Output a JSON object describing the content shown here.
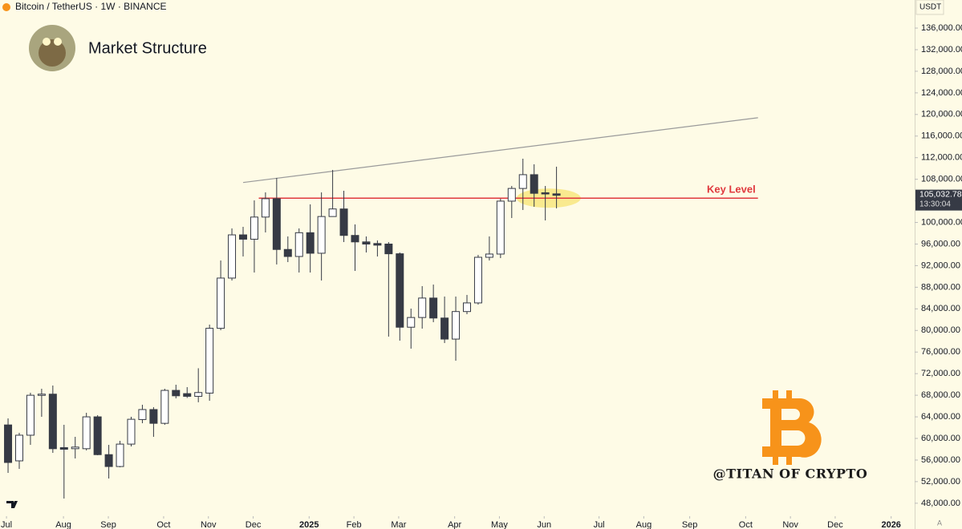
{
  "chart_data": {
    "type": "candlestick",
    "symbol": "Bitcoin / TetherUS · 1W · BINANCE",
    "title": "Market Structure",
    "currency": "USDT",
    "watermark": "@TITAN OF CRYPTO",
    "scale_mode": "A",
    "up_color": "#ffffff",
    "down_color": "#363a45",
    "candles": {
      "open": [
        62500,
        55850,
        60600,
        68000,
        68200,
        58300,
        58100,
        58100,
        64000,
        57000,
        54800,
        58950,
        63500,
        65350,
        62800,
        68900,
        68300,
        67800,
        68400,
        80400,
        89700,
        97700,
        96900,
        101000,
        104400,
        95000,
        93700,
        98100,
        94300,
        101100,
        102500,
        97600,
        96400,
        96100,
        96000,
        94200,
        80600,
        82400,
        86000,
        82300,
        78400,
        83500,
        85100,
        93550,
        94150,
        103950,
        106300,
        108850,
        105500,
        105300
      ],
      "high": [
        63713,
        61040,
        68460,
        69200,
        69800,
        62530,
        60300,
        64750,
        64310,
        58810,
        59560,
        64010,
        66240,
        65790,
        69200,
        69950,
        69500,
        73000,
        81080,
        92960,
        98900,
        99190,
        104090,
        105570,
        108250,
        97410,
        98900,
        103350,
        105570,
        109730,
        105870,
        99640,
        97410,
        96670,
        96370,
        94440,
        84050,
        88210,
        88500,
        86280,
        86280,
        86580,
        93990,
        97410,
        104390,
        106760,
        111810,
        110770,
        106760,
        110330
      ],
      "low": [
        53620,
        54360,
        58810,
        64010,
        57330,
        48870,
        56290,
        57780,
        56890,
        52580,
        54660,
        58520,
        62820,
        60300,
        62530,
        67420,
        67500,
        66700,
        66980,
        80040,
        89250,
        93700,
        90730,
        98150,
        92220,
        92660,
        90730,
        90730,
        89250,
        101120,
        96370,
        91030,
        94440,
        93700,
        78860,
        78110,
        76630,
        80340,
        81530,
        77670,
        74400,
        83010,
        84790,
        92960,
        93400,
        100820,
        102310,
        102900,
        100380,
        102610
      ],
      "close": [
        55550,
        60600,
        68000,
        68200,
        58100,
        58000,
        58400,
        64000,
        57000,
        54800,
        58950,
        63550,
        65350,
        62800,
        68900,
        67900,
        67800,
        68500,
        80400,
        89700,
        97700,
        96900,
        101000,
        104400,
        95000,
        93700,
        98100,
        94300,
        101100,
        102500,
        97600,
        96400,
        96000,
        95800,
        94200,
        80600,
        82400,
        86000,
        82300,
        78400,
        83500,
        85100,
        93550,
        94150,
        103950,
        106300,
        108850,
        105400,
        105300,
        105032.78
      ]
    },
    "trendline": {
      "x": [
        21,
        67
      ],
      "values": [
        107400,
        119400
      ],
      "color": "#9a9a9a"
    },
    "key_level": {
      "label": "Key Level",
      "value": 104500,
      "x": [
        22.4,
        67
      ],
      "color": "#e0393e"
    },
    "highlight": {
      "x": 48.3,
      "value": 104500,
      "color": "#f5e055"
    },
    "price_label": {
      "value": 105032.78,
      "label": "105,032.78"
    },
    "countdown": "13:30:04",
    "xlim": [
      -0.72,
      81.0
    ],
    "ylim": [
      45900,
      141200
    ],
    "xticks": [
      {
        "value": -0.14,
        "label": "Jul"
      },
      {
        "value": 4.95,
        "label": "Aug"
      },
      {
        "value": 8.96,
        "label": "Sep"
      },
      {
        "value": 13.9,
        "label": "Oct"
      },
      {
        "value": 17.9,
        "label": "Nov"
      },
      {
        "value": 21.9,
        "label": "Dec"
      },
      {
        "value": 26.9,
        "label": "2025"
      },
      {
        "value": 30.9,
        "label": "Feb"
      },
      {
        "value": 34.9,
        "label": "Mar"
      },
      {
        "value": 39.9,
        "label": "Apr"
      },
      {
        "value": 43.9,
        "label": "May"
      },
      {
        "value": 47.9,
        "label": "Jun"
      },
      {
        "value": 52.8,
        "label": "Jul"
      },
      {
        "value": 56.8,
        "label": "Aug"
      },
      {
        "value": 60.9,
        "label": "Sep"
      },
      {
        "value": 65.9,
        "label": "Oct"
      },
      {
        "value": 69.9,
        "label": "Nov"
      },
      {
        "value": 73.9,
        "label": "Dec"
      },
      {
        "value": 78.9,
        "label": "2026"
      }
    ],
    "yticks": [
      {
        "value": 48000,
        "label": "48,000.00"
      },
      {
        "value": 52000,
        "label": "52,000.00"
      },
      {
        "value": 56000,
        "label": "56,000.00"
      },
      {
        "value": 60000,
        "label": "60,000.00"
      },
      {
        "value": 64000,
        "label": "64,000.00"
      },
      {
        "value": 68000,
        "label": "68,000.00"
      },
      {
        "value": 72000,
        "label": "72,000.00"
      },
      {
        "value": 76000,
        "label": "76,000.00"
      },
      {
        "value": 80000,
        "label": "80,000.00"
      },
      {
        "value": 84000,
        "label": "84,000.00"
      },
      {
        "value": 88000,
        "label": "88,000.00"
      },
      {
        "value": 92000,
        "label": "92,000.00"
      },
      {
        "value": 96000,
        "label": "96,000.00"
      },
      {
        "value": 100000,
        "label": "100,000.00"
      },
      {
        "value": 104000,
        "label": "104,000.00"
      },
      {
        "value": 108000,
        "label": "108,000.00"
      },
      {
        "value": 112000,
        "label": "112,000.00"
      },
      {
        "value": 116000,
        "label": "116,000.00"
      },
      {
        "value": 120000,
        "label": "120,000.00"
      },
      {
        "value": 124000,
        "label": "124,000.00"
      },
      {
        "value": 128000,
        "label": "128,000.00"
      },
      {
        "value": 132000,
        "label": "132,000.00"
      },
      {
        "value": 136000,
        "label": "136,000.00"
      }
    ]
  }
}
